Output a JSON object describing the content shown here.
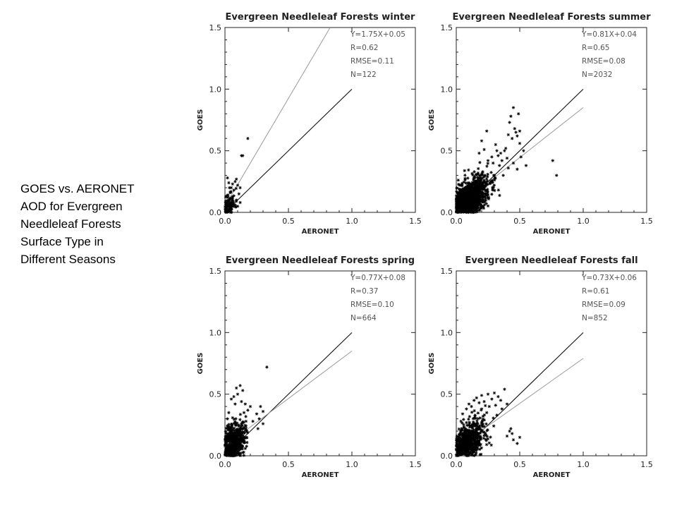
{
  "caption": {
    "lines": [
      "GOES vs. AERONET",
      "AOD for Evergreen",
      "Needleleaf Forests",
      "Surface Type in",
      "Different Seasons"
    ]
  },
  "chart_data": [
    {
      "type": "scatter",
      "title": "Evergreen Needleleaf Forests winter",
      "xlabel": "AERONET",
      "ylabel": "GOES",
      "xlim": [
        0,
        1.5
      ],
      "ylim": [
        0,
        1.5
      ],
      "xticks": [
        "0.0",
        "0.5",
        "1.0",
        "1.5"
      ],
      "yticks": [
        "0.0",
        "0.5",
        "1.0",
        "1.5"
      ],
      "stats": [
        "Y=1.75X+0.05",
        "R=0.62",
        "RMSE=0.11",
        "N=122"
      ],
      "fit": {
        "slope": 1.75,
        "intercept": 0.05
      },
      "one_to_one": [
        [
          0,
          0
        ],
        [
          1,
          1
        ]
      ],
      "points": [
        [
          0.18,
          0.6
        ],
        [
          0.13,
          0.46
        ],
        [
          0.14,
          0.46
        ],
        [
          0.09,
          0.27
        ],
        [
          0.08,
          0.25
        ],
        [
          0.12,
          0.2
        ],
        [
          0.1,
          0.22
        ],
        [
          0.11,
          0.15
        ],
        [
          0.06,
          0.23
        ],
        [
          0.07,
          0.18
        ],
        [
          0.02,
          0.28
        ],
        [
          0.03,
          0.24
        ],
        [
          0.05,
          0.2
        ],
        [
          0.04,
          0.16
        ],
        [
          0.02,
          0.14
        ],
        [
          0.03,
          0.1
        ],
        [
          0.05,
          0.08
        ],
        [
          0.08,
          0.06
        ],
        [
          0.1,
          0.05
        ],
        [
          0.12,
          0.08
        ],
        [
          0.09,
          0.1
        ],
        [
          0.06,
          0.12
        ],
        [
          0.07,
          0.05
        ],
        [
          0.04,
          0.03
        ]
      ],
      "cluster": {
        "center": [
          0.03,
          0.06
        ],
        "spread": [
          0.025,
          0.05
        ],
        "count": 95,
        "seed": 11
      }
    },
    {
      "type": "scatter",
      "title": "Evergreen Needleleaf Forests summer",
      "xlabel": "AERONET",
      "ylabel": "GOES",
      "xlim": [
        0,
        1.5
      ],
      "ylim": [
        0,
        1.5
      ],
      "xticks": [
        "0.0",
        "0.5",
        "1.0",
        "1.5"
      ],
      "yticks": [
        "0.0",
        "0.5",
        "1.0",
        "1.5"
      ],
      "stats": [
        "Y=0.81X+0.04",
        "R=0.65",
        "RMSE=0.08",
        "N=2032"
      ],
      "fit": {
        "slope": 0.81,
        "intercept": 0.04
      },
      "one_to_one": [
        [
          0,
          0
        ],
        [
          1,
          1
        ]
      ],
      "points": [
        [
          0.45,
          0.85
        ],
        [
          0.49,
          0.8
        ],
        [
          0.43,
          0.78
        ],
        [
          0.42,
          0.73
        ],
        [
          0.46,
          0.68
        ],
        [
          0.5,
          0.66
        ],
        [
          0.47,
          0.65
        ],
        [
          0.41,
          0.63
        ],
        [
          0.48,
          0.62
        ],
        [
          0.44,
          0.6
        ],
        [
          0.5,
          0.56
        ],
        [
          0.39,
          0.52
        ],
        [
          0.38,
          0.5
        ],
        [
          0.35,
          0.48
        ],
        [
          0.33,
          0.46
        ],
        [
          0.28,
          0.45
        ],
        [
          0.31,
          0.55
        ],
        [
          0.24,
          0.66
        ],
        [
          0.32,
          0.5
        ],
        [
          0.2,
          0.58
        ],
        [
          0.22,
          0.51
        ],
        [
          0.18,
          0.48
        ],
        [
          0.25,
          0.42
        ],
        [
          0.29,
          0.4
        ],
        [
          0.36,
          0.42
        ],
        [
          0.4,
          0.44
        ],
        [
          0.34,
          0.38
        ],
        [
          0.41,
          0.36
        ],
        [
          0.45,
          0.4
        ],
        [
          0.51,
          0.45
        ],
        [
          0.53,
          0.5
        ],
        [
          0.76,
          0.42
        ],
        [
          0.79,
          0.3
        ],
        [
          0.55,
          0.38
        ],
        [
          0.48,
          0.35
        ],
        [
          0.3,
          0.3
        ],
        [
          0.37,
          0.3
        ]
      ],
      "cluster": {
        "center": [
          0.1,
          0.1
        ],
        "spread": [
          0.08,
          0.08
        ],
        "count": 950,
        "seed": 23
      }
    },
    {
      "type": "scatter",
      "title": "Evergreen Needleleaf Forests spring",
      "xlabel": "AERONET",
      "ylabel": "GOES",
      "xlim": [
        0,
        1.5
      ],
      "ylim": [
        0,
        1.5
      ],
      "xticks": [
        "0.0",
        "0.5",
        "1.0",
        "1.5"
      ],
      "yticks": [
        "0.0",
        "0.5",
        "1.0",
        "1.5"
      ],
      "stats": [
        "Y=0.77X+0.08",
        "R=0.37",
        "RMSE=0.10",
        "N=664"
      ],
      "fit": {
        "slope": 0.77,
        "intercept": 0.08
      },
      "one_to_one": [
        [
          0,
          0
        ],
        [
          1,
          1
        ]
      ],
      "points": [
        [
          0.33,
          0.72
        ],
        [
          0.12,
          0.57
        ],
        [
          0.09,
          0.55
        ],
        [
          0.14,
          0.53
        ],
        [
          0.1,
          0.5
        ],
        [
          0.07,
          0.48
        ],
        [
          0.05,
          0.46
        ],
        [
          0.13,
          0.44
        ],
        [
          0.16,
          0.42
        ],
        [
          0.2,
          0.4
        ],
        [
          0.18,
          0.37
        ],
        [
          0.28,
          0.4
        ],
        [
          0.3,
          0.36
        ],
        [
          0.25,
          0.34
        ],
        [
          0.27,
          0.3
        ],
        [
          0.22,
          0.28
        ],
        [
          0.26,
          0.22
        ],
        [
          0.3,
          0.26
        ],
        [
          0.08,
          0.42
        ],
        [
          0.03,
          0.35
        ],
        [
          0.02,
          0.3
        ],
        [
          0.15,
          0.35
        ]
      ],
      "cluster": {
        "center": [
          0.07,
          0.12
        ],
        "spread": [
          0.045,
          0.08
        ],
        "count": 480,
        "seed": 37
      }
    },
    {
      "type": "scatter",
      "title": "Evergreen Needleleaf Forests fall",
      "xlabel": "AERONET",
      "ylabel": "GOES",
      "xlim": [
        0,
        1.5
      ],
      "ylim": [
        0,
        1.5
      ],
      "xticks": [
        "0.0",
        "0.5",
        "1.0",
        "1.5"
      ],
      "yticks": [
        "0.0",
        "0.5",
        "1.0",
        "1.5"
      ],
      "stats": [
        "Y=0.73X+0.06",
        "R=0.61",
        "RMSE=0.09",
        "N=852"
      ],
      "fit": {
        "slope": 0.73,
        "intercept": 0.06
      },
      "one_to_one": [
        [
          0,
          0
        ],
        [
          1,
          1
        ]
      ],
      "points": [
        [
          0.38,
          0.54
        ],
        [
          0.3,
          0.51
        ],
        [
          0.25,
          0.5
        ],
        [
          0.2,
          0.49
        ],
        [
          0.33,
          0.48
        ],
        [
          0.16,
          0.47
        ],
        [
          0.28,
          0.46
        ],
        [
          0.35,
          0.45
        ],
        [
          0.4,
          0.42
        ],
        [
          0.22,
          0.44
        ],
        [
          0.18,
          0.43
        ],
        [
          0.14,
          0.45
        ],
        [
          0.31,
          0.41
        ],
        [
          0.26,
          0.4
        ],
        [
          0.36,
          0.38
        ],
        [
          0.12,
          0.4
        ],
        [
          0.1,
          0.42
        ],
        [
          0.08,
          0.38
        ],
        [
          0.05,
          0.34
        ],
        [
          0.42,
          0.2
        ],
        [
          0.44,
          0.18
        ],
        [
          0.4,
          0.16
        ],
        [
          0.48,
          0.1
        ],
        [
          0.45,
          0.13
        ],
        [
          0.5,
          0.15
        ],
        [
          0.43,
          0.22
        ],
        [
          0.32,
          0.33
        ],
        [
          0.24,
          0.35
        ],
        [
          0.2,
          0.38
        ]
      ],
      "cluster": {
        "center": [
          0.1,
          0.12
        ],
        "spread": [
          0.07,
          0.08
        ],
        "count": 600,
        "seed": 53
      }
    }
  ]
}
